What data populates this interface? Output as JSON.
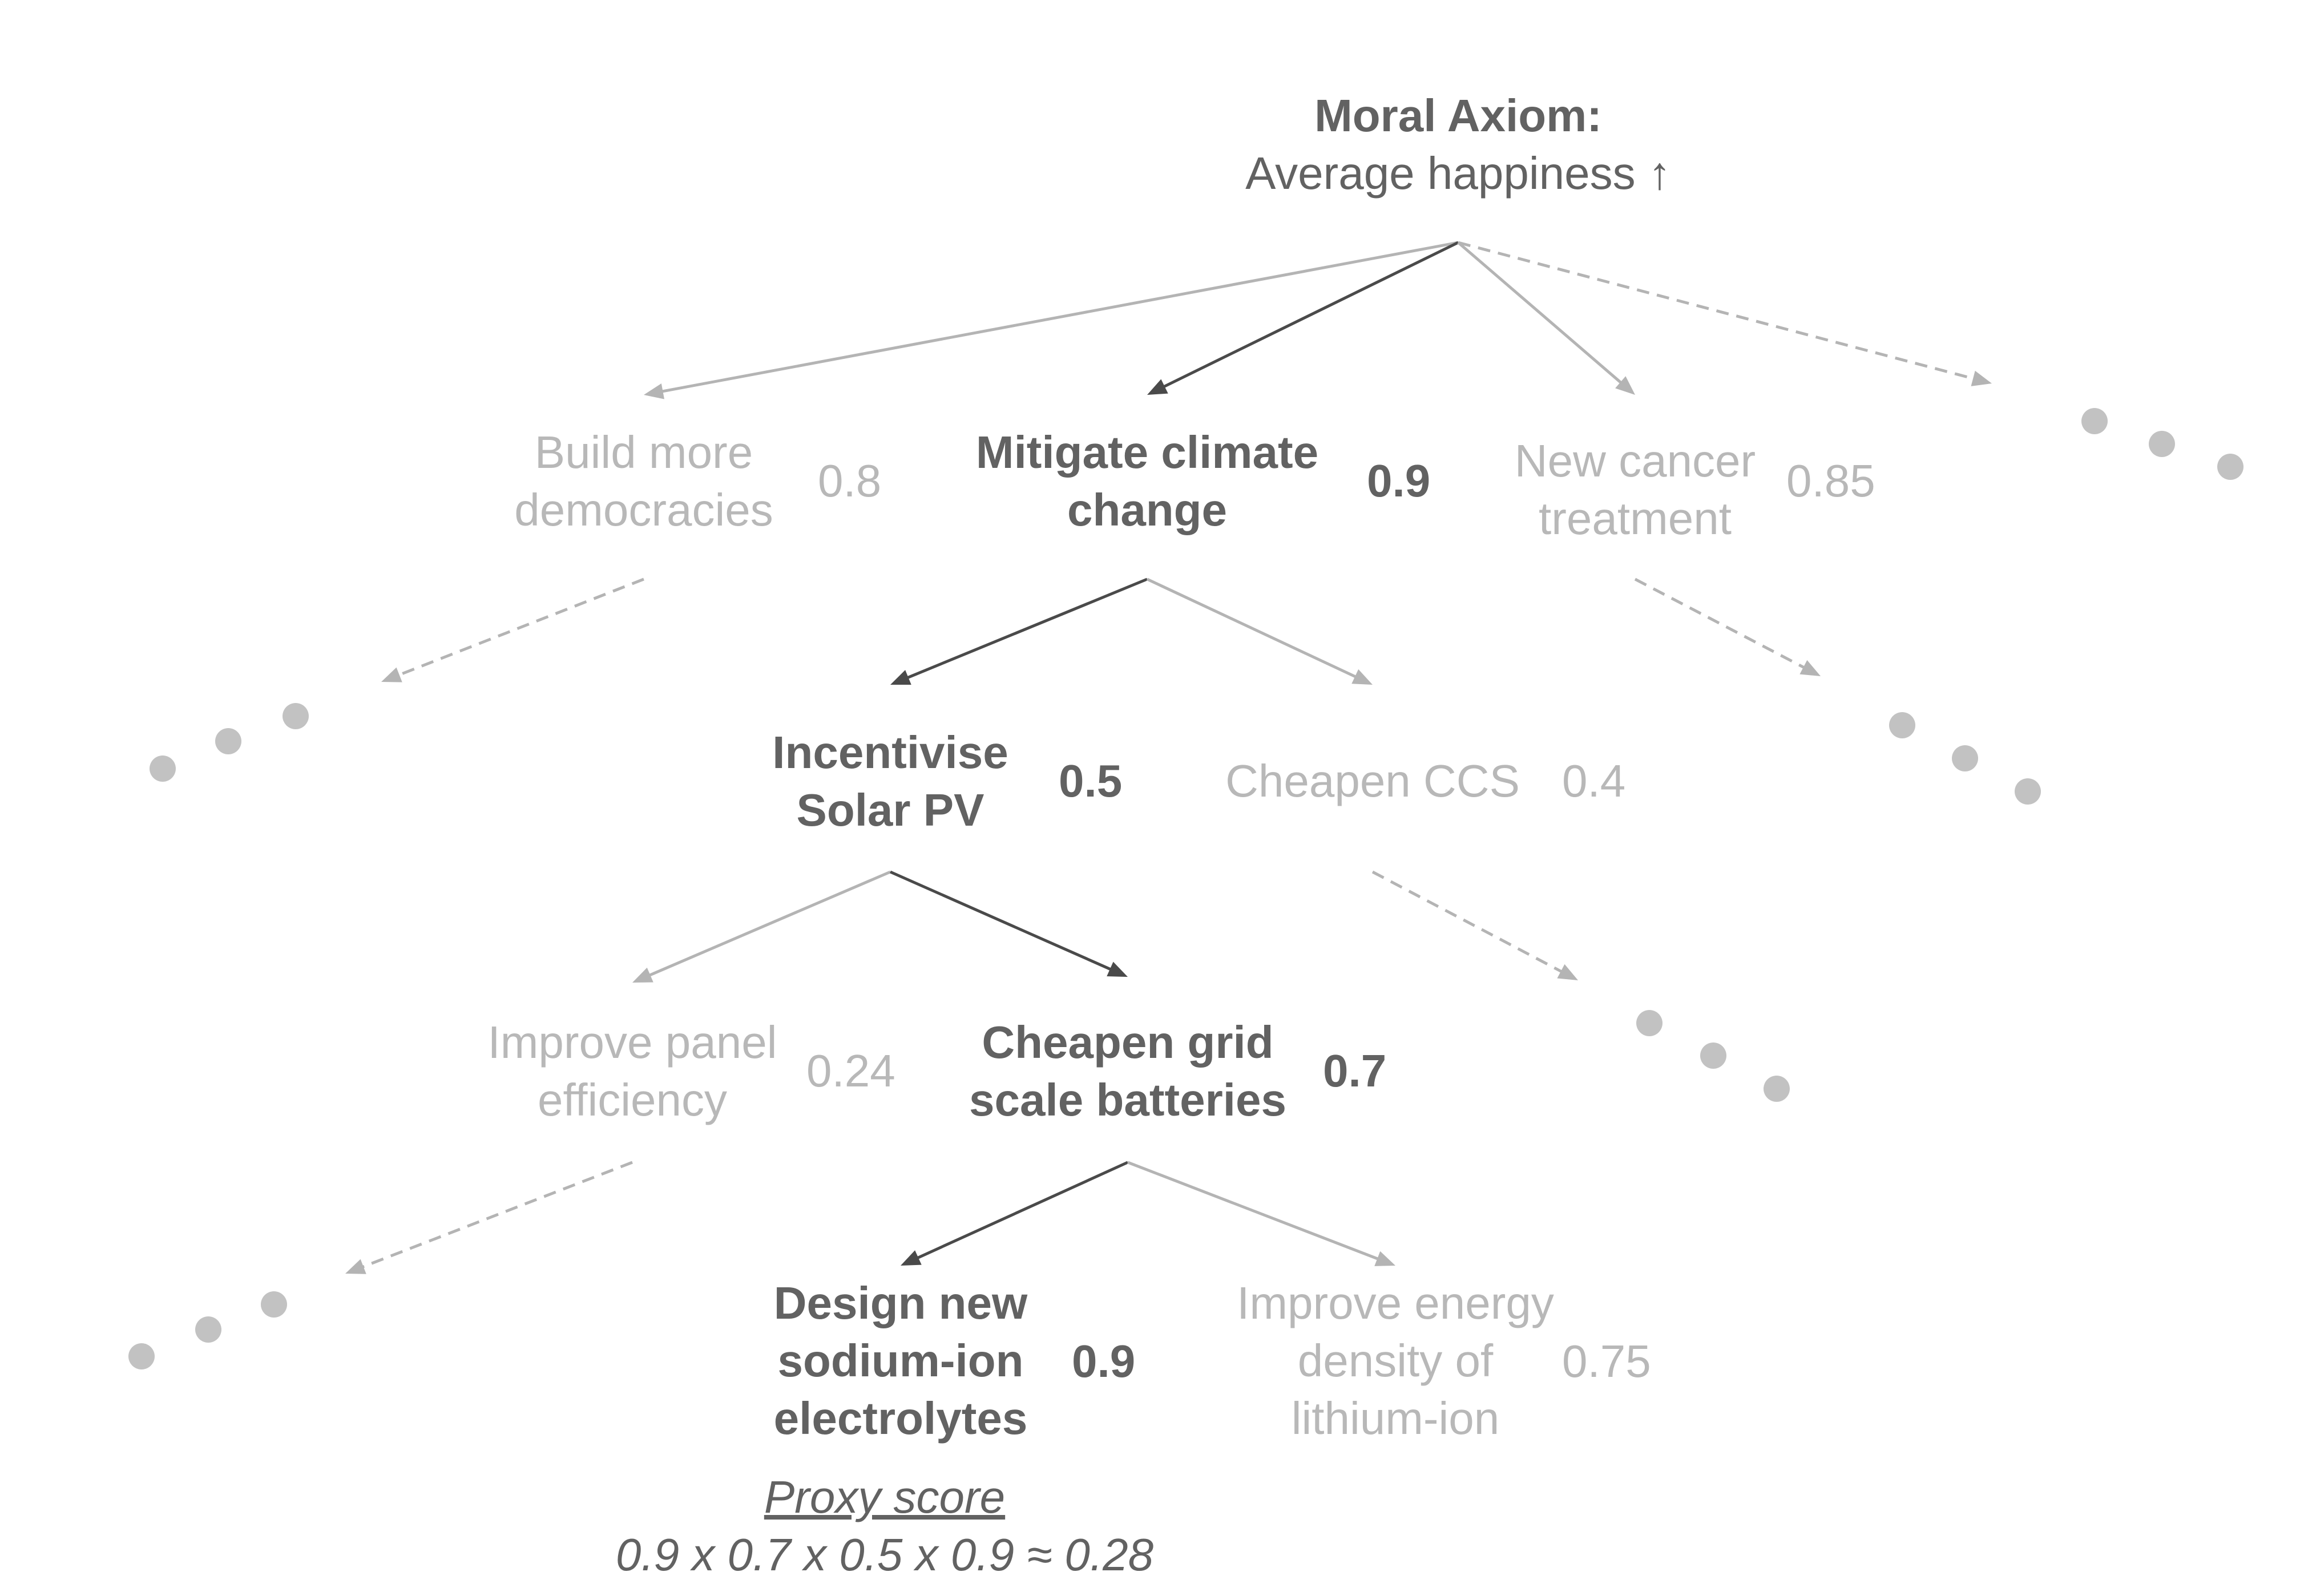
{
  "colors": {
    "active": "#626262",
    "inactive": "#b8b8b8",
    "dots": "#c2c2c2"
  },
  "root": {
    "title": "Moral Axiom:",
    "subtitle": "Average happiness ↑"
  },
  "level1": {
    "democracies": {
      "lines": [
        "Build more",
        "democracies"
      ],
      "score": "0.8"
    },
    "climate": {
      "lines": [
        "Mitigate climate",
        "change"
      ],
      "score": "0.9"
    },
    "cancer": {
      "lines": [
        "New cancer",
        "treatment"
      ],
      "score": "0.85"
    }
  },
  "level2": {
    "solar": {
      "lines": [
        "Incentivise",
        "Solar PV"
      ],
      "score": "0.5"
    },
    "ccs": {
      "lines": [
        "Cheapen CCS"
      ],
      "score": "0.4"
    }
  },
  "level3": {
    "panel": {
      "lines": [
        "Improve panel",
        "efficiency"
      ],
      "score": "0.24"
    },
    "batteries": {
      "lines": [
        "Cheapen grid",
        "scale batteries"
      ],
      "score": "0.7"
    }
  },
  "level4": {
    "sodium": {
      "lines": [
        "Design new",
        "sodium-ion",
        "electrolytes"
      ],
      "score": "0.9"
    },
    "lithium": {
      "lines": [
        "Improve energy",
        "density of",
        "lithium-ion"
      ],
      "score": "0.75"
    }
  },
  "proxy": {
    "title": "Proxy score",
    "formula": "0.9 x 0.7 x 0.5 x 0.9 ≈ 0.28"
  }
}
